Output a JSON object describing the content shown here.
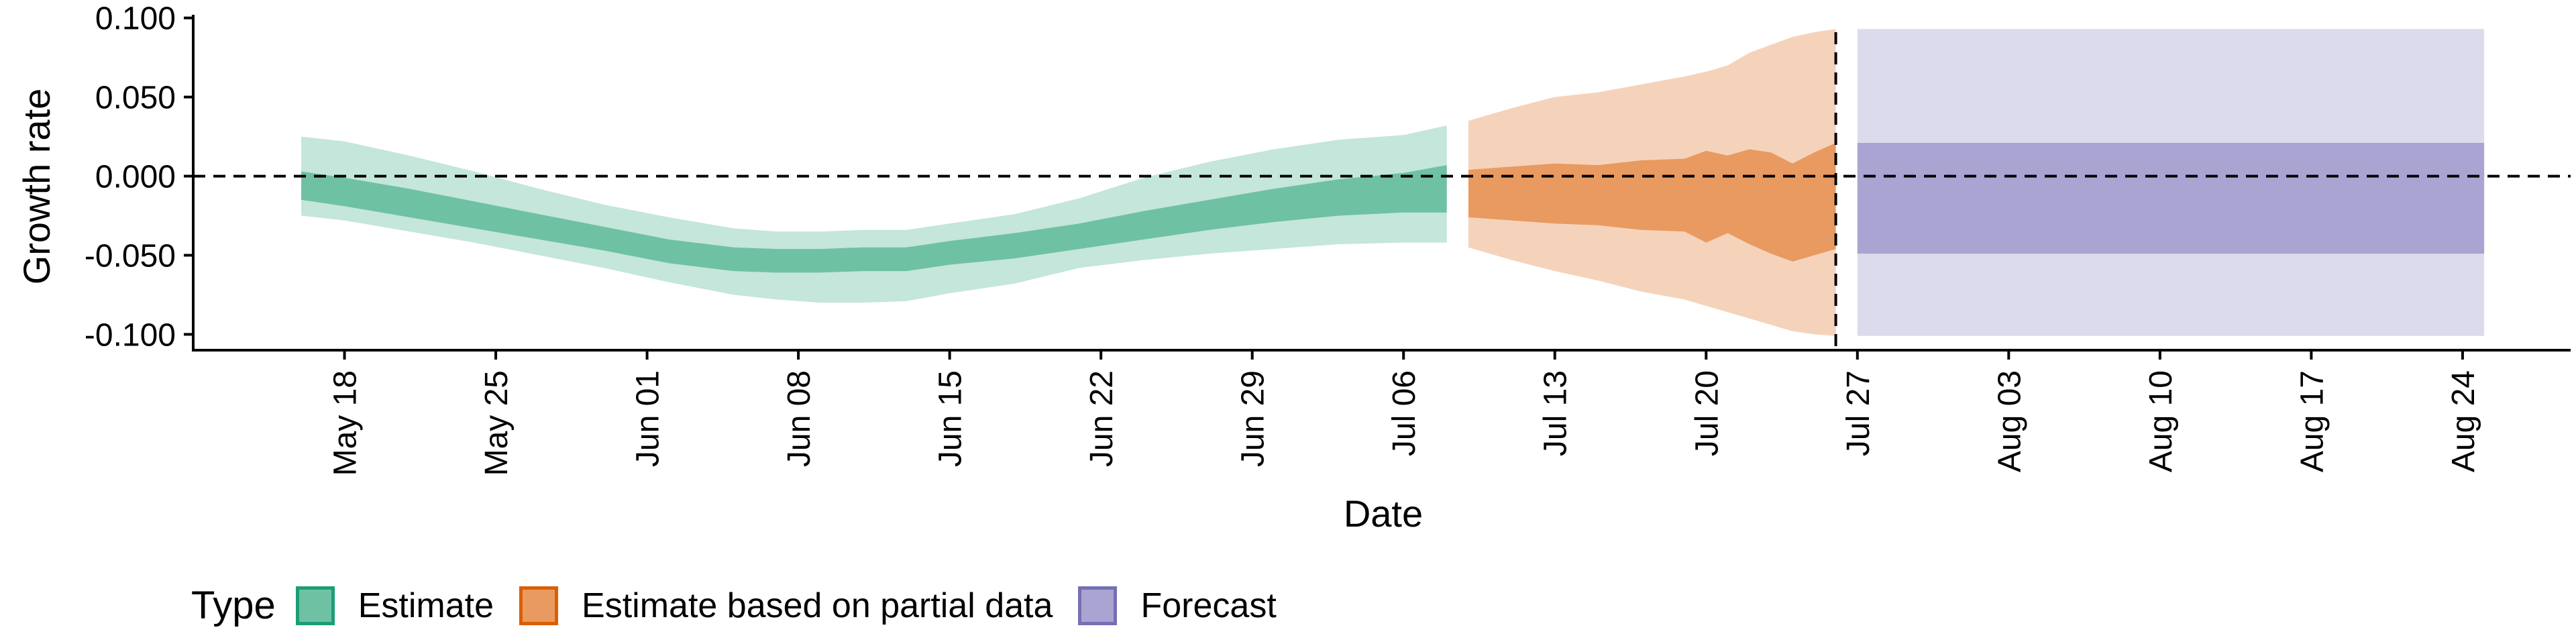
{
  "chart_data": {
    "type": "area",
    "xlabel": "Date",
    "ylabel": "Growth rate",
    "x_ticks": [
      "May 18",
      "May 25",
      "Jun 01",
      "Jun 08",
      "Jun 15",
      "Jun 22",
      "Jun 29",
      "Jul 06",
      "Jul 13",
      "Jul 20",
      "Jul 27",
      "Aug 03",
      "Aug 10",
      "Aug 17",
      "Aug 24"
    ],
    "y_ticks": [
      "0.100",
      "0.050",
      "0.000",
      "-0.050",
      "-0.100"
    ],
    "ylim": [
      -0.11,
      0.102
    ],
    "xlim": [
      "2020-05-11",
      "2020-08-29"
    ],
    "hline_y": 0,
    "vline_x": "2020-07-26",
    "legend": {
      "title": "Type",
      "position": "bottom",
      "items": [
        {
          "label": "Estimate",
          "fill": "#6fc1a3",
          "border": "#1b9e77"
        },
        {
          "label": "Estimate based on partial data",
          "fill": "#e99a60",
          "border": "#d95f02"
        },
        {
          "label": "Forecast",
          "fill": "#a9a4d2",
          "border": "#7570b3"
        }
      ]
    },
    "series": [
      {
        "name": "Estimate",
        "outer_color": "#c5e6da",
        "inner_color": "#6fc1a3",
        "x": [
          "2020-05-16",
          "2020-05-18",
          "2020-05-21",
          "2020-05-24",
          "2020-05-27",
          "2020-05-30",
          "2020-06-02",
          "2020-06-05",
          "2020-06-07",
          "2020-06-09",
          "2020-06-11",
          "2020-06-13",
          "2020-06-15",
          "2020-06-18",
          "2020-06-21",
          "2020-06-24",
          "2020-06-27",
          "2020-06-30",
          "2020-07-03",
          "2020-07-06",
          "2020-07-08"
        ],
        "outer_hi": [
          0.025,
          0.022,
          0.013,
          0.003,
          -0.008,
          -0.018,
          -0.026,
          -0.033,
          -0.035,
          -0.035,
          -0.034,
          -0.034,
          -0.03,
          -0.024,
          -0.014,
          -0.001,
          0.009,
          0.017,
          0.023,
          0.026,
          0.032
        ],
        "inner_hi": [
          0.003,
          -0.001,
          -0.008,
          -0.016,
          -0.024,
          -0.032,
          -0.04,
          -0.045,
          -0.046,
          -0.046,
          -0.045,
          -0.045,
          -0.041,
          -0.036,
          -0.03,
          -0.022,
          -0.015,
          -0.008,
          -0.002,
          0.002,
          0.007
        ],
        "inner_lo": [
          -0.015,
          -0.019,
          -0.026,
          -0.033,
          -0.04,
          -0.047,
          -0.055,
          -0.06,
          -0.061,
          -0.061,
          -0.06,
          -0.06,
          -0.056,
          -0.052,
          -0.046,
          -0.04,
          -0.034,
          -0.029,
          -0.025,
          -0.023,
          -0.023
        ],
        "outer_lo": [
          -0.025,
          -0.028,
          -0.035,
          -0.042,
          -0.05,
          -0.058,
          -0.067,
          -0.075,
          -0.078,
          -0.08,
          -0.08,
          -0.079,
          -0.074,
          -0.068,
          -0.058,
          -0.053,
          -0.049,
          -0.046,
          -0.043,
          -0.042,
          -0.042
        ]
      },
      {
        "name": "Estimate based on partial data",
        "outer_color": "#f5d3bb",
        "inner_color": "#e99a60",
        "x": [
          "2020-07-09",
          "2020-07-11",
          "2020-07-13",
          "2020-07-15",
          "2020-07-17",
          "2020-07-19",
          "2020-07-20",
          "2020-07-21",
          "2020-07-22",
          "2020-07-23",
          "2020-07-24",
          "2020-07-25",
          "2020-07-26"
        ],
        "outer_hi": [
          0.035,
          0.043,
          0.05,
          0.053,
          0.058,
          0.063,
          0.066,
          0.07,
          0.078,
          0.083,
          0.088,
          0.091,
          0.093
        ],
        "inner_hi": [
          0.004,
          0.006,
          0.008,
          0.007,
          0.01,
          0.011,
          0.016,
          0.013,
          0.017,
          0.015,
          0.008,
          0.015,
          0.021
        ],
        "inner_lo": [
          -0.026,
          -0.028,
          -0.03,
          -0.031,
          -0.034,
          -0.035,
          -0.042,
          -0.036,
          -0.043,
          -0.049,
          -0.054,
          -0.05,
          -0.046
        ],
        "outer_lo": [
          -0.045,
          -0.053,
          -0.06,
          -0.066,
          -0.073,
          -0.078,
          -0.082,
          -0.086,
          -0.09,
          -0.094,
          -0.098,
          -0.1,
          -0.101
        ]
      },
      {
        "name": "Forecast",
        "outer_color": "#dcdbed",
        "inner_color": "#a9a4d2",
        "x": [
          "2020-07-27",
          "2020-08-25"
        ],
        "outer_hi": [
          0.093,
          0.093
        ],
        "inner_hi": [
          0.021,
          0.021
        ],
        "inner_lo": [
          -0.049,
          -0.049
        ],
        "outer_lo": [
          -0.101,
          -0.101
        ]
      }
    ]
  }
}
